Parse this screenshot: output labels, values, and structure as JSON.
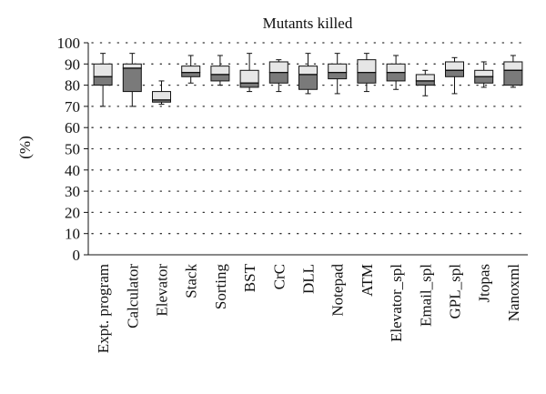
{
  "chart_data": {
    "type": "box",
    "title": "Mutants killed",
    "ylabel": "(%)",
    "xlabel": "",
    "ylim": [
      0,
      100
    ],
    "yticks": [
      0,
      10,
      20,
      30,
      40,
      50,
      60,
      70,
      80,
      90,
      100
    ],
    "grid": "horizontal dotted",
    "box_fill_light": "#e6e6e6",
    "box_fill_dark": "#7a7a7a",
    "categories": [
      "Expt. program",
      "Calculator",
      "Elevator",
      "Stack",
      "Sorting",
      "BST",
      "CrC",
      "DLL",
      "Notepad",
      "ATM",
      "Elevator_spl",
      "Email_spl",
      "GPL_spl",
      "Jtopas",
      "Nanoxml"
    ],
    "boxes": [
      {
        "min": 70,
        "q1": 80,
        "median": 84,
        "q3": 90,
        "max": 95,
        "upper_fill": "light",
        "lower_fill": "dark"
      },
      {
        "min": 70,
        "q1": 77,
        "median": 88,
        "q3": 90,
        "max": 95,
        "upper_fill": "light",
        "lower_fill": "dark"
      },
      {
        "min": 71,
        "q1": 72,
        "median": 73,
        "q3": 77,
        "max": 82,
        "upper_fill": "light",
        "lower_fill": "dark"
      },
      {
        "min": 81,
        "q1": 84,
        "median": 86,
        "q3": 89,
        "max": 94,
        "upper_fill": "light",
        "lower_fill": "dark"
      },
      {
        "min": 80,
        "q1": 82,
        "median": 85,
        "q3": 89,
        "max": 94,
        "upper_fill": "light",
        "lower_fill": "dark"
      },
      {
        "min": 77,
        "q1": 79,
        "median": 81,
        "q3": 87,
        "max": 95,
        "upper_fill": "light",
        "lower_fill": "dark"
      },
      {
        "min": 77,
        "q1": 81,
        "median": 86,
        "q3": 91,
        "max": 92,
        "upper_fill": "light",
        "lower_fill": "dark"
      },
      {
        "min": 76,
        "q1": 78,
        "median": 85,
        "q3": 89,
        "max": 95,
        "upper_fill": "light",
        "lower_fill": "dark"
      },
      {
        "min": 76,
        "q1": 83,
        "median": 86,
        "q3": 90,
        "max": 95,
        "upper_fill": "light",
        "lower_fill": "dark"
      },
      {
        "min": 77,
        "q1": 81,
        "median": 86,
        "q3": 92,
        "max": 95,
        "upper_fill": "light",
        "lower_fill": "dark"
      },
      {
        "min": 78,
        "q1": 82,
        "median": 86,
        "q3": 90,
        "max": 94,
        "upper_fill": "light",
        "lower_fill": "dark"
      },
      {
        "min": 75,
        "q1": 80,
        "median": 82,
        "q3": 85,
        "max": 87,
        "upper_fill": "light",
        "lower_fill": "dark"
      },
      {
        "min": 76,
        "q1": 84,
        "median": 87,
        "q3": 91,
        "max": 93,
        "upper_fill": "light",
        "lower_fill": "dark"
      },
      {
        "min": 79,
        "q1": 81,
        "median": 84,
        "q3": 87,
        "max": 91,
        "upper_fill": "light",
        "lower_fill": "dark"
      },
      {
        "min": 79,
        "q1": 80,
        "median": 87,
        "q3": 91,
        "max": 94,
        "upper_fill": "light",
        "lower_fill": "dark"
      }
    ]
  }
}
